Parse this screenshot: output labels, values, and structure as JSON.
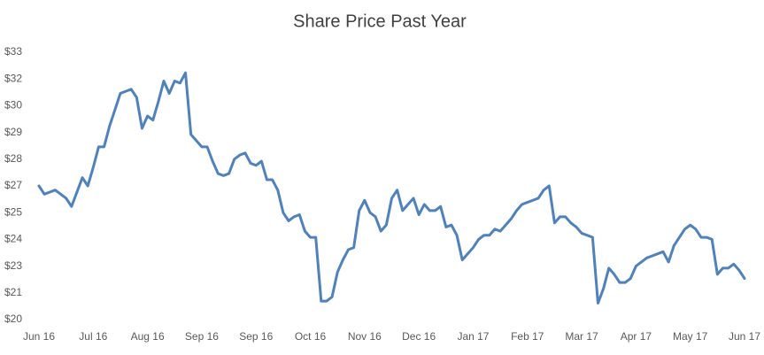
{
  "chart_data": {
    "type": "line",
    "title": "Share Price Past Year",
    "categories": [
      "Jun 16",
      null,
      null,
      null,
      null,
      null,
      null,
      null,
      null,
      null,
      "Jul 16",
      null,
      null,
      null,
      null,
      null,
      null,
      null,
      null,
      null,
      "Aug 16",
      null,
      null,
      null,
      null,
      null,
      null,
      null,
      null,
      null,
      "Sep 16",
      null,
      null,
      null,
      null,
      null,
      null,
      null,
      null,
      null,
      "Sep 16",
      null,
      null,
      null,
      null,
      null,
      null,
      null,
      null,
      null,
      "Oct 16",
      null,
      null,
      null,
      null,
      null,
      null,
      null,
      null,
      null,
      "Nov 16",
      null,
      null,
      null,
      null,
      null,
      null,
      null,
      null,
      null,
      "Dec 16",
      null,
      null,
      null,
      null,
      null,
      null,
      null,
      null,
      null,
      "Jan 17",
      null,
      null,
      null,
      null,
      null,
      null,
      null,
      null,
      null,
      "Feb 17",
      null,
      null,
      null,
      null,
      null,
      null,
      null,
      null,
      null,
      "Mar 17",
      null,
      null,
      null,
      null,
      null,
      null,
      null,
      null,
      null,
      "Apr 17",
      null,
      null,
      null,
      null,
      null,
      null,
      null,
      null,
      null,
      "May 17",
      null,
      null,
      null,
      null,
      null,
      null,
      null,
      null,
      null,
      "Jun 17"
    ],
    "values": [
      26.5,
      26.1,
      26.2,
      26.3,
      26.1,
      25.9,
      25.5,
      26.2,
      26.9,
      26.5,
      27.4,
      28.4,
      28.4,
      29.4,
      30.2,
      31.0,
      31.1,
      31.2,
      30.8,
      29.3,
      29.9,
      29.7,
      30.6,
      31.6,
      31.0,
      31.6,
      31.5,
      32.0,
      29.0,
      28.7,
      28.4,
      28.4,
      27.7,
      27.1,
      27.0,
      27.1,
      27.8,
      28.0,
      28.1,
      27.6,
      27.5,
      27.7,
      26.8,
      26.8,
      26.3,
      25.2,
      24.8,
      25.0,
      25.1,
      24.3,
      24.0,
      24.0,
      20.9,
      20.9,
      21.1,
      22.3,
      22.9,
      23.4,
      23.5,
      25.3,
      25.8,
      25.2,
      25.0,
      24.3,
      24.6,
      25.9,
      26.3,
      25.3,
      25.6,
      25.9,
      25.1,
      25.6,
      25.3,
      25.3,
      25.5,
      24.5,
      24.6,
      24.1,
      22.9,
      23.2,
      23.5,
      23.9,
      24.1,
      24.1,
      24.4,
      24.3,
      24.6,
      24.9,
      25.3,
      25.6,
      25.7,
      25.8,
      25.9,
      26.3,
      26.5,
      24.7,
      25.0,
      25.0,
      24.7,
      24.5,
      24.2,
      24.1,
      24.0,
      20.8,
      21.5,
      22.5,
      22.2,
      21.8,
      21.8,
      22.0,
      22.6,
      22.8,
      23.0,
      23.1,
      23.2,
      23.3,
      22.8,
      23.6,
      24.0,
      24.4,
      24.6,
      24.4,
      24.0,
      24.0,
      23.9,
      22.2,
      22.5,
      22.5,
      22.7,
      22.4,
      22.0
    ],
    "color": "#4f81bd",
    "ylim": [
      20,
      33
    ],
    "yticks": [
      {
        "value": 20,
        "label": "$20"
      },
      {
        "value": 21.3,
        "label": "$21"
      },
      {
        "value": 22.6,
        "label": "$23"
      },
      {
        "value": 23.9,
        "label": "$24"
      },
      {
        "value": 25.2,
        "label": "$25"
      },
      {
        "value": 26.5,
        "label": "$27"
      },
      {
        "value": 27.8,
        "label": "$28"
      },
      {
        "value": 29.1,
        "label": "$29"
      },
      {
        "value": 30.4,
        "label": "$30"
      },
      {
        "value": 31.7,
        "label": "$32"
      },
      {
        "value": 33,
        "label": "$33"
      }
    ],
    "grid": false
  }
}
